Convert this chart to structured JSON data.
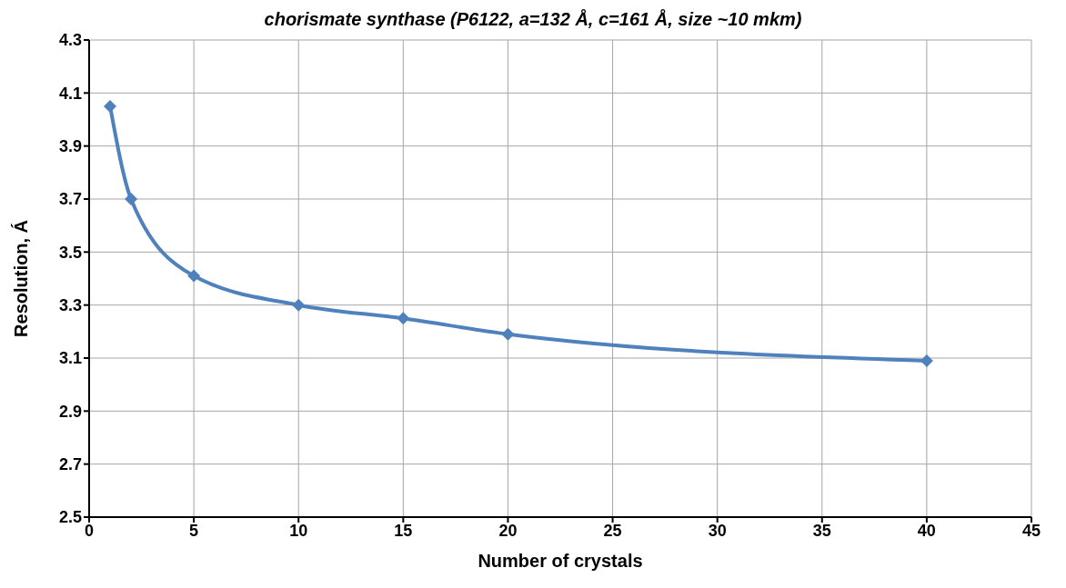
{
  "chart_data": {
    "type": "line",
    "title": "chorismate synthase (P6122, a=132 Å, c=161 Å, size ~10 mkm)",
    "xlabel": "Number  of crystals",
    "ylabel": "Resolution, Á",
    "x": [
      1,
      2,
      5,
      10,
      15,
      20,
      40
    ],
    "series": [
      {
        "color": "#4f81bd",
        "values": [
          4.05,
          3.7,
          3.41,
          3.3,
          3.25,
          3.19,
          3.09
        ]
      }
    ],
    "xlim": [
      0,
      45
    ],
    "xticks": [
      0,
      5,
      10,
      15,
      20,
      25,
      30,
      35,
      40,
      45
    ],
    "ylim": [
      2.5,
      4.3
    ],
    "yticks": [
      {
        "value": 2.5,
        "label": "2.5"
      },
      {
        "value": 2.7,
        "label": "2.7"
      },
      {
        "value": 2.9,
        "label": "2.9"
      },
      {
        "value": 3.1,
        "label": "3.1"
      },
      {
        "value": 3.3,
        "label": "3.3"
      },
      {
        "value": 3.5,
        "label": "3.5"
      },
      {
        "value": 3.7,
        "label": "3.7"
      },
      {
        "value": 3.9,
        "label": "3.9"
      },
      {
        "value": 4.1,
        "label": "4.1"
      },
      {
        "value": 4.3,
        "label": "4.3"
      }
    ],
    "grid": true,
    "marker": "diamond",
    "line_style": "solid"
  }
}
